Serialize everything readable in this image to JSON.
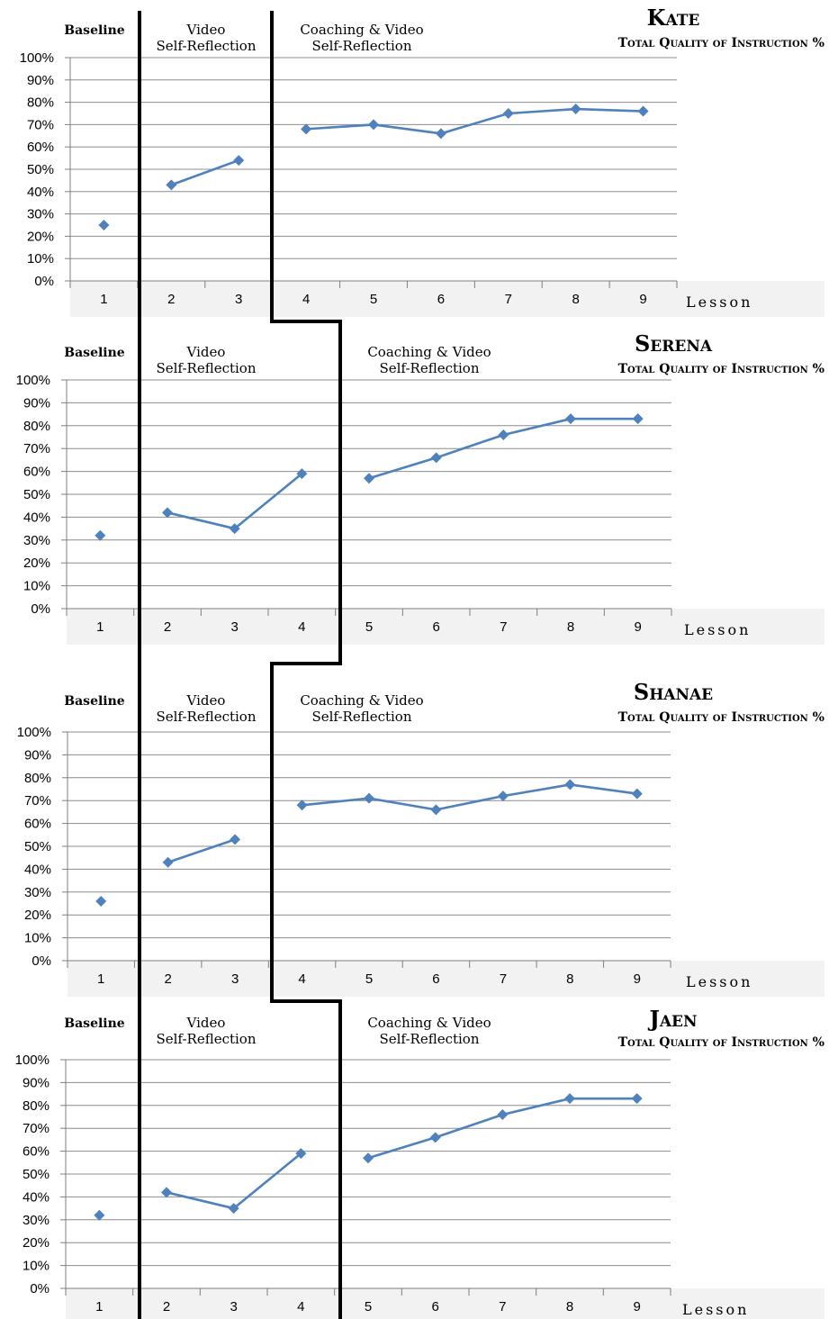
{
  "chart_data": [
    {
      "type": "line",
      "title": "Kate",
      "subtitle": "Total Quality of Instruction %",
      "xlabel": "Lesson",
      "ylabel": "",
      "ylim": [
        0,
        100
      ],
      "yticks": [
        "0%",
        "10%",
        "20%",
        "30%",
        "40%",
        "50%",
        "60%",
        "70%",
        "80%",
        "90%",
        "100%"
      ],
      "categories": [
        "1",
        "2",
        "3",
        "4",
        "5",
        "6",
        "7",
        "8",
        "9"
      ],
      "phases": [
        {
          "lines": [
            "Baseline"
          ],
          "lessons": [
            1
          ]
        },
        {
          "lines": [
            "Video",
            "Self-Reflection"
          ],
          "lessons": [
            2,
            3
          ]
        },
        {
          "lines": [
            "Coaching & Video",
            "Self-Reflection"
          ],
          "lessons": [
            4,
            5,
            6,
            7,
            8,
            9
          ]
        }
      ],
      "values": [
        25,
        43,
        54,
        68,
        70,
        66,
        75,
        77,
        76
      ],
      "grid": true,
      "color": "#4f81bd"
    },
    {
      "type": "line",
      "title": "Serena",
      "subtitle": "Total Quality of Instruction %",
      "xlabel": "Lesson",
      "ylabel": "",
      "ylim": [
        0,
        100
      ],
      "yticks": [
        "0%",
        "10%",
        "20%",
        "30%",
        "40%",
        "50%",
        "60%",
        "70%",
        "80%",
        "90%",
        "100%"
      ],
      "categories": [
        "1",
        "2",
        "3",
        "4",
        "5",
        "6",
        "7",
        "8",
        "9"
      ],
      "phases": [
        {
          "lines": [
            "Baseline"
          ],
          "lessons": [
            1
          ]
        },
        {
          "lines": [
            "Video",
            "Self-Reflection"
          ],
          "lessons": [
            2,
            3,
            4
          ]
        },
        {
          "lines": [
            "Coaching & Video",
            "Self-Reflection"
          ],
          "lessons": [
            5,
            6,
            7,
            8,
            9
          ]
        }
      ],
      "values": [
        32,
        42,
        35,
        59,
        57,
        66,
        76,
        83,
        83
      ],
      "grid": true,
      "color": "#4f81bd"
    },
    {
      "type": "line",
      "title": "Shanae",
      "subtitle": "Total Quality of Instruction %",
      "xlabel": "Lesson",
      "ylabel": "",
      "ylim": [
        0,
        100
      ],
      "yticks": [
        "0%",
        "10%",
        "20%",
        "30%",
        "40%",
        "50%",
        "60%",
        "70%",
        "80%",
        "90%",
        "100%"
      ],
      "categories": [
        "1",
        "2",
        "3",
        "4",
        "5",
        "6",
        "7",
        "8",
        "9"
      ],
      "phases": [
        {
          "lines": [
            "Baseline"
          ],
          "lessons": [
            1
          ]
        },
        {
          "lines": [
            "Video",
            "Self-Reflection"
          ],
          "lessons": [
            2,
            3
          ]
        },
        {
          "lines": [
            "Coaching & Video",
            "Self-Reflection"
          ],
          "lessons": [
            4,
            5,
            6,
            7,
            8,
            9
          ]
        }
      ],
      "values": [
        26,
        43,
        53,
        68,
        71,
        66,
        72,
        77,
        73
      ],
      "grid": true,
      "color": "#4f81bd"
    },
    {
      "type": "line",
      "title": "Jaen",
      "subtitle": "Total Quality of Instruction %",
      "xlabel": "Lesson",
      "ylabel": "",
      "ylim": [
        0,
        100
      ],
      "yticks": [
        "0%",
        "10%",
        "20%",
        "30%",
        "40%",
        "50%",
        "60%",
        "70%",
        "80%",
        "90%",
        "100%"
      ],
      "categories": [
        "1",
        "2",
        "3",
        "4",
        "5",
        "6",
        "7",
        "8",
        "9"
      ],
      "phases": [
        {
          "lines": [
            "Baseline"
          ],
          "lessons": [
            1
          ]
        },
        {
          "lines": [
            "Video",
            "Self-Reflection"
          ],
          "lessons": [
            2,
            3,
            4
          ]
        },
        {
          "lines": [
            "Coaching & Video",
            "Self-Reflection"
          ],
          "lessons": [
            5,
            6,
            7,
            8,
            9
          ]
        }
      ],
      "values": [
        32,
        42,
        35,
        59,
        57,
        66,
        76,
        83,
        83
      ],
      "grid": true,
      "color": "#4f81bd"
    }
  ]
}
